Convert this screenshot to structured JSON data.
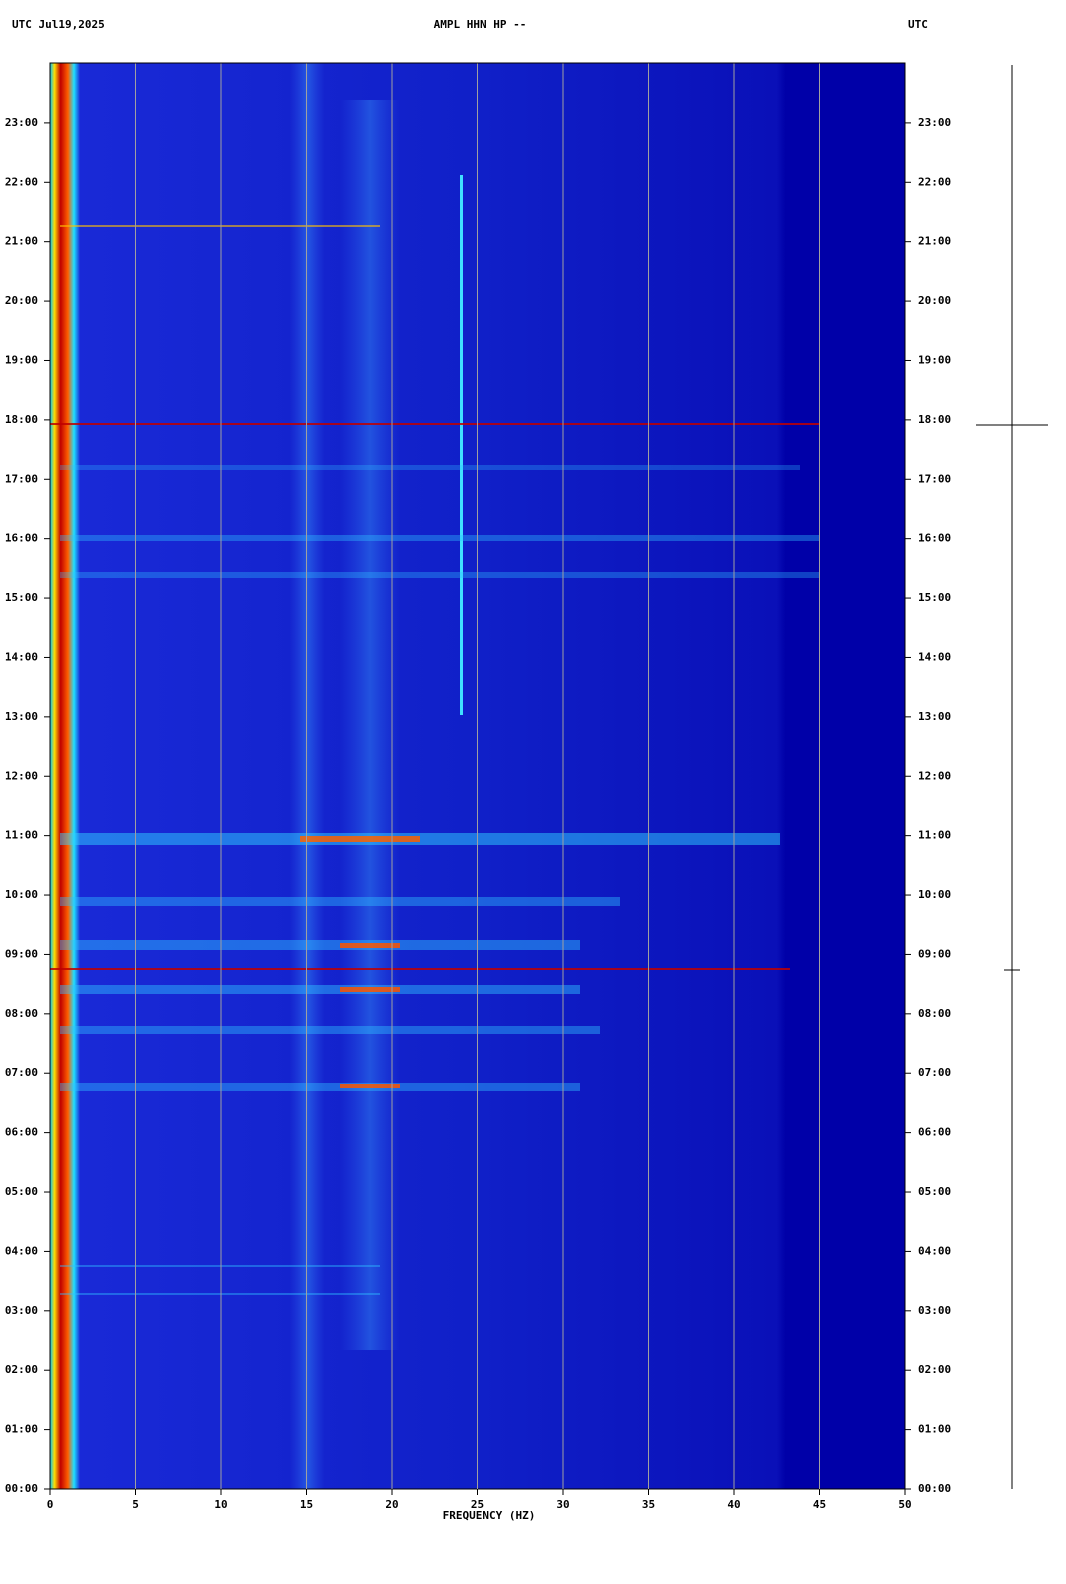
{
  "chart_data": {
    "type": "spectrogram",
    "title_left": "UTC  Jul19,2025",
    "title": "AMPL HHN HP --",
    "title_right": "UTC",
    "xlabel": "FREQUENCY (HZ)",
    "xlim": [
      0,
      50
    ],
    "xticks": [
      0,
      5,
      10,
      15,
      20,
      25,
      30,
      35,
      40,
      45,
      50
    ],
    "ylim": [
      0,
      24
    ],
    "yticks": [
      {
        "value": 0,
        "label": "00:00"
      },
      {
        "value": 1,
        "label": "01:00"
      },
      {
        "value": 2,
        "label": "02:00"
      },
      {
        "value": 3,
        "label": "03:00"
      },
      {
        "value": 4,
        "label": "04:00"
      },
      {
        "value": 5,
        "label": "05:00"
      },
      {
        "value": 6,
        "label": "06:00"
      },
      {
        "value": 7,
        "label": "07:00"
      },
      {
        "value": 8,
        "label": "08:00"
      },
      {
        "value": 9,
        "label": "09:00"
      },
      {
        "value": 10,
        "label": "10:00"
      },
      {
        "value": 11,
        "label": "11:00"
      },
      {
        "value": 12,
        "label": "12:00"
      },
      {
        "value": 13,
        "label": "13:00"
      },
      {
        "value": 14,
        "label": "14:00"
      },
      {
        "value": 15,
        "label": "15:00"
      },
      {
        "value": 16,
        "label": "16:00"
      },
      {
        "value": 17,
        "label": "17:00"
      },
      {
        "value": 18,
        "label": "18:00"
      },
      {
        "value": 19,
        "label": "19:00"
      },
      {
        "value": 20,
        "label": "20:00"
      },
      {
        "value": 21,
        "label": "21:00"
      },
      {
        "value": 22,
        "label": "22:00"
      },
      {
        "value": 23,
        "label": "23:00"
      }
    ],
    "grid": true,
    "grid_color": "#a0a0a0"
  }
}
